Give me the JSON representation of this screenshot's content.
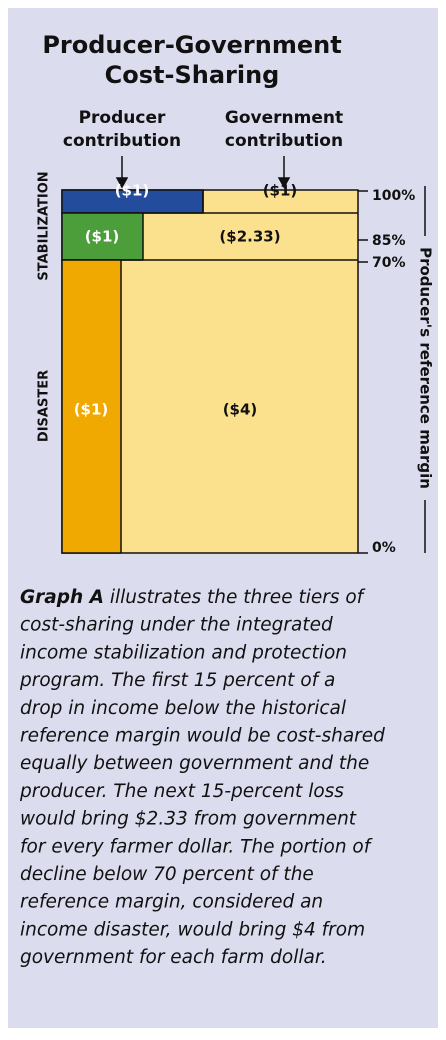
{
  "title": [
    "Producer-Government",
    "Cost-Sharing"
  ],
  "headers": {
    "producer": [
      "Producer",
      "contribution"
    ],
    "government": [
      "Government",
      "contribution"
    ]
  },
  "tiers": {
    "stabilization_label": "STABILIZATION",
    "disaster_label": "DISASTER",
    "rows": [
      {
        "producer": "($1)",
        "government": "($1)"
      },
      {
        "producer": "($1)",
        "government": "($2.33)"
      },
      {
        "producer": "($1)",
        "government": "($4)"
      }
    ]
  },
  "levels": [
    "100%",
    "85%",
    "70%",
    "0%"
  ],
  "axis_label": "Producer's reference margin",
  "caption": {
    "lead": "Graph A",
    "lines": [
      " illustrates the three tiers of",
      "cost-sharing under the integrated",
      "income stabilization and protection",
      "program. The first 15 percent of a",
      "drop in income below the historical",
      "reference margin would be cost-shared",
      "equally between government and the",
      "producer. The next 15-percent loss",
      "would bring $2.33 from government",
      "for every farmer dollar. The portion of",
      "decline below 70 percent of the",
      "reference margin, considered an",
      "income disaster, would bring $4 from",
      "government for each farm dollar."
    ]
  }
}
